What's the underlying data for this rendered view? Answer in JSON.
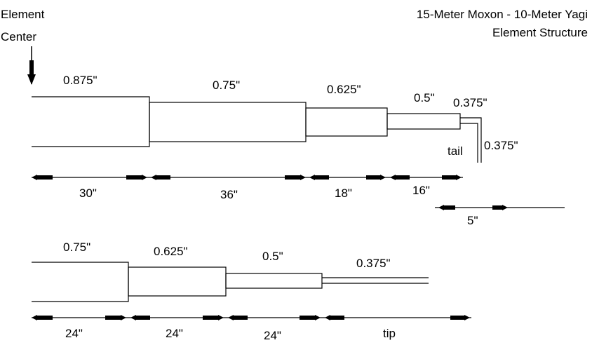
{
  "title": {
    "line1": "15-Meter Moxon - 10-Meter Yagi",
    "line2": "Element Structure"
  },
  "center_label": {
    "line1": "Element",
    "line2": "Center"
  },
  "upper_element": {
    "diameters": [
      "0.875\"",
      "0.75\"",
      "0.625\"",
      "0.5\"",
      "0.375\""
    ],
    "tail_label": "tail",
    "tail_diameter": "0.375\"",
    "lengths": [
      "30\"",
      "36\"",
      "18\"",
      "16\""
    ],
    "tail_length": "5\""
  },
  "lower_element": {
    "diameters": [
      "0.75\"",
      "0.625\"",
      "0.5\"",
      "0.375\""
    ],
    "lengths": [
      "24\"",
      "24\"",
      "24\"",
      "tip"
    ]
  },
  "colors": {
    "line": "#000000",
    "background": "#ffffff"
  }
}
